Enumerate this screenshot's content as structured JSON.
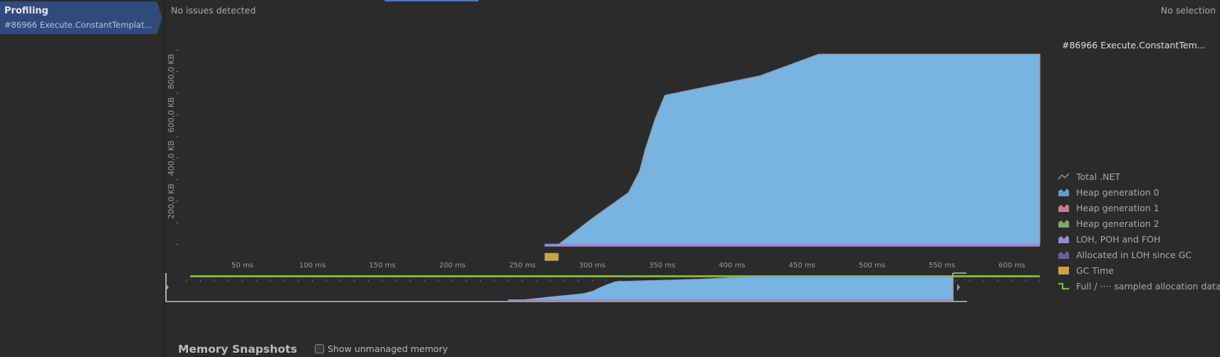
{
  "sidebar": {
    "session_title": "Profiling",
    "session_subtitle": "#86966 Execute.ConstantTemplate.S..."
  },
  "header": {
    "issues_text": "No issues detected",
    "selection_text": "No selection"
  },
  "legend": {
    "title": "#86966 Execute.ConstantTem...",
    "items": [
      {
        "label": "Total .NET",
        "icon": "line-icon",
        "color": "#8c8c8c"
      },
      {
        "label": "Heap generation 0",
        "icon": "area-icon",
        "color": "#5a9fd0"
      },
      {
        "label": "Heap generation 1",
        "icon": "area-icon",
        "color": "#c77f86"
      },
      {
        "label": "Heap generation 2",
        "icon": "area-icon",
        "color": "#7fa86a"
      },
      {
        "label": "LOH, POH and FOH",
        "icon": "area-icon",
        "color": "#9a88d6"
      },
      {
        "label": "Allocated in LOH since GC",
        "icon": "area-icon",
        "color": "#6f5aa5"
      },
      {
        "label": "GC Time",
        "icon": "box-icon",
        "color": "#c9a24a"
      },
      {
        "label": "Full / ···· sampled allocation data",
        "icon": "step-icon",
        "color": "#7db53a"
      }
    ]
  },
  "chart_data": {
    "type": "area",
    "ylabel_ticks": [
      "200,0 KB",
      "400,0 KB",
      "600,0 KB",
      "800,0 KB"
    ],
    "xticks": [
      "50 ms",
      "100 ms",
      "150 ms",
      "200 ms",
      "250 ms",
      "300 ms",
      "350 ms",
      "400 ms",
      "450 ms",
      "500 ms",
      "550 ms",
      "600 ms"
    ],
    "x_unit": "ms",
    "xlim": [
      8,
      620
    ],
    "ylim": [
      -60,
      960
    ],
    "series": [
      {
        "name": "Heap generation 0",
        "color": "#79b3e0",
        "x": [
          276,
          300,
          326,
          334,
          338,
          345,
          352,
          420,
          462,
          620
        ],
        "y": [
          0,
          120,
          240,
          340,
          440,
          580,
          690,
          780,
          880,
          880
        ]
      },
      {
        "name": "LOH, POH and FOH",
        "color": "#9a88d6",
        "x": [
          266,
          620
        ],
        "y": [
          10,
          10
        ]
      }
    ],
    "gc_time": {
      "start": 266,
      "end": 276
    },
    "overview_visible_range": [
      8,
      620
    ]
  },
  "snapshots": {
    "title": "Memory Snapshots",
    "show_unmanaged_label": "Show unmanaged memory",
    "show_unmanaged_checked": false
  },
  "colors": {
    "background": "#2b2b2b",
    "selected": "#2f4a7d",
    "accent": "#3d7bd8",
    "area_fill": "#79b3e0"
  }
}
